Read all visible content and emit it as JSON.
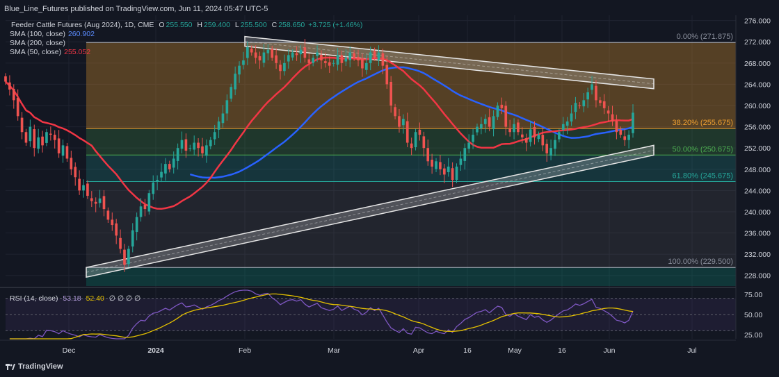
{
  "publisher_line": "Blue_Line_Futures published on TradingView.com, Jun 11, 2024 05:47 UTC-5",
  "legend": {
    "symbol": "Feeder Cattle Futures (Aug 2024), 1D, CME",
    "ohlc": {
      "o_label": "O",
      "o": "255.550",
      "h_label": "H",
      "h": "259.400",
      "l_label": "L",
      "l": "255.500",
      "c_label": "C",
      "c": "258.650",
      "change": "+3.725 (+1.46%)"
    },
    "sma100_label": "SMA (100, close)",
    "sma100_value": "260.902",
    "sma200_label": "SMA (200, close)",
    "sma50_label": "SMA (50, close)",
    "sma50_value": "255.052",
    "rsi_label": "RSI (14, close)",
    "rsi_value": "53.18",
    "rsi_ma_value": "52.40",
    "rsi_extra": "∅ ∅ ∅ ∅"
  },
  "branding": "TradingView",
  "colors": {
    "background": "#131722",
    "up": "#26a69a",
    "down": "#ef5350",
    "sma100": "#2962ff",
    "sma50": "#f23645",
    "rsi": "#7e57c2",
    "rsi_ma": "#e5c100",
    "fib_0": "#f0a030",
    "fib_382": "#4caf50",
    "fib_50": "#26a69a",
    "fib_618": "#089981"
  },
  "chart_data": [
    {
      "type": "candlestick",
      "title": "Feeder Cattle Futures (Aug 2024), 1D, CME",
      "ylim": [
        226,
        277
      ],
      "y_ticks": [
        "276.000",
        "272.000",
        "268.000",
        "264.000",
        "260.000",
        "256.000",
        "252.000",
        "248.000",
        "244.000",
        "240.000",
        "236.000",
        "232.000",
        "228.000"
      ],
      "x_ticks": [
        "Dec",
        "2024",
        "Feb",
        "Mar",
        "Apr",
        "16",
        "May",
        "16",
        "Jun",
        "Jul"
      ],
      "fib_levels": [
        {
          "ratio": "0.00%",
          "value": 271.875,
          "label": "0.00% (271.875)"
        },
        {
          "ratio": "38.20%",
          "value": 255.675,
          "label": "38.20% (255.675)"
        },
        {
          "ratio": "50.00%",
          "value": 250.675,
          "label": "50.00% (250.675)"
        },
        {
          "ratio": "61.80%",
          "value": 245.675,
          "label": "61.80% (245.675)"
        },
        {
          "ratio": "100.00%",
          "value": 229.5,
          "label": "100.00% (229.500)"
        }
      ],
      "channel_upper": {
        "from": [
          "Feb",
          273.0
        ],
        "to": [
          "Jun",
          265.0
        ]
      },
      "channel_lower": {
        "from": [
          "Dec",
          229.5
        ],
        "to": [
          "Jun",
          252.5
        ]
      },
      "closes": [
        264.5,
        263.0,
        261.0,
        258.0,
        255.0,
        253.0,
        256.0,
        252.0,
        254.0,
        252.5,
        255.0,
        254.5,
        253.5,
        251.0,
        252.5,
        250.0,
        248.0,
        246.5,
        244.0,
        245.0,
        243.0,
        242.0,
        241.5,
        242.5,
        240.5,
        238.5,
        237.5,
        235.5,
        233.0,
        230.0,
        233.0,
        236.5,
        239.0,
        241.0,
        240.5,
        243.5,
        245.5,
        246.0,
        247.5,
        249.0,
        248.0,
        250.0,
        252.0,
        253.5,
        251.5,
        252.0,
        253.0,
        252.0,
        251.0,
        252.5,
        253.5,
        255.0,
        257.0,
        258.5,
        261.0,
        263.5,
        266.0,
        267.5,
        268.5,
        271.0,
        270.0,
        269.0,
        268.5,
        270.0,
        270.5,
        269.0,
        268.0,
        266.5,
        268.0,
        269.5,
        270.0,
        269.5,
        270.5,
        269.0,
        268.0,
        269.0,
        270.0,
        268.5,
        268.0,
        267.5,
        268.0,
        269.5,
        268.0,
        269.0,
        270.0,
        269.0,
        268.5,
        267.0,
        268.0,
        270.0,
        269.0,
        270.0,
        267.5,
        264.0,
        260.0,
        258.0,
        256.0,
        257.5,
        253.0,
        252.0,
        255.0,
        254.5,
        252.0,
        249.5,
        248.5,
        249.5,
        248.0,
        247.0,
        248.5,
        246.0,
        248.5,
        250.0,
        252.0,
        253.0,
        254.5,
        256.0,
        256.5,
        257.5,
        256.0,
        258.0,
        260.0,
        259.5,
        256.0,
        255.0,
        256.5,
        255.0,
        254.0,
        253.0,
        255.5,
        254.0,
        254.5,
        252.5,
        251.0,
        252.0,
        253.5,
        255.0,
        256.5,
        257.0,
        258.5,
        260.5,
        260.0,
        261.0,
        262.5,
        264.0,
        261.0,
        260.5,
        259.5,
        258.5,
        257.0,
        255.0,
        254.5,
        253.5,
        254.5,
        258.65
      ]
    },
    {
      "type": "line",
      "title": "RSI (14, close)",
      "ylim": [
        20,
        80
      ],
      "y_ticks": [
        "75.00",
        "50.00",
        "25.00"
      ],
      "bands": [
        70,
        50,
        30
      ],
      "series": [
        {
          "name": "RSI",
          "value_label": "53.18"
        },
        {
          "name": "RSI-MA",
          "value_label": "52.40"
        }
      ]
    }
  ]
}
